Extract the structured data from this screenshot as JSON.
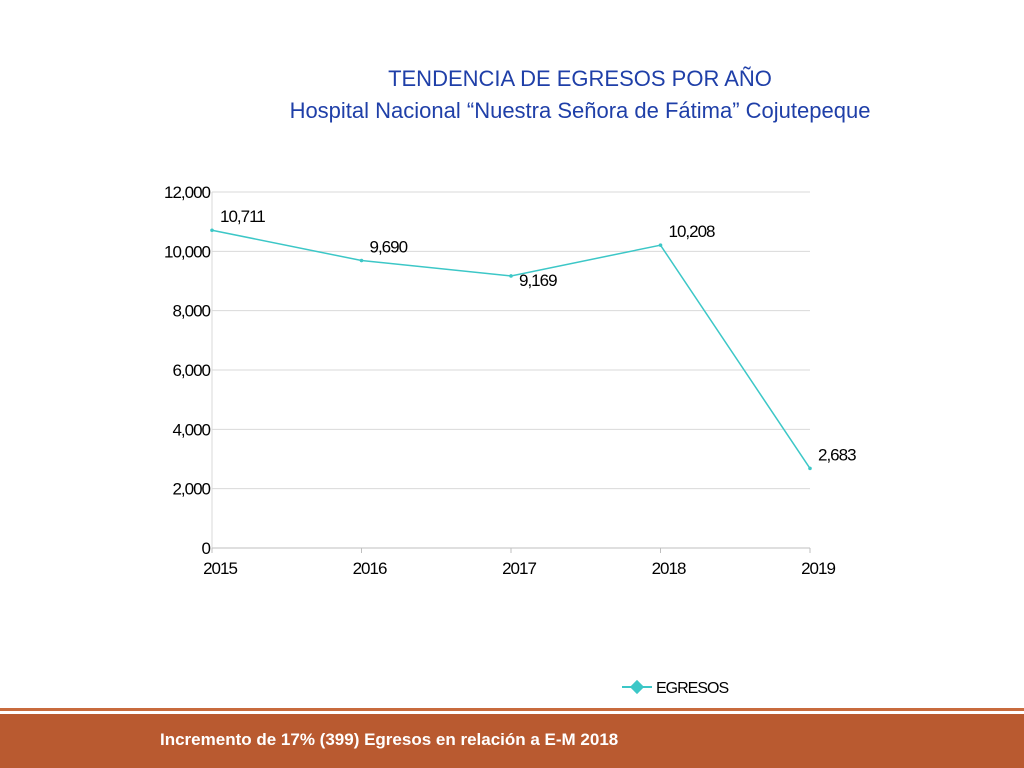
{
  "header": {
    "title": "TENDENCIA DE EGRESOS POR AÑO",
    "subtitle": "Hospital Nacional “Nuestra Señora de Fátima” Cojutepeque"
  },
  "footer": {
    "text": "Incremento de 17% (399) Egresos en relación a E-M 2018"
  },
  "colors": {
    "title": "#1f3fa8",
    "series": "#3cc7c7",
    "footer": "#b95a30"
  },
  "chart_data": {
    "type": "line",
    "x": [
      "2015",
      "2016",
      "2017",
      "2018",
      "2019"
    ],
    "series": [
      {
        "name": "EGRESOS",
        "values": [
          10711,
          9690,
          9169,
          10208,
          2683
        ]
      }
    ],
    "value_labels": [
      "10,711",
      "9,690",
      "9,169",
      "10,208",
      "2,683"
    ],
    "yticks": [
      "0",
      "2,000",
      "4,000",
      "6,000",
      "8,000",
      "10,000",
      "12,000"
    ],
    "ylim": [
      0,
      12000
    ],
    "grid": true,
    "legend": "bottom-right"
  }
}
